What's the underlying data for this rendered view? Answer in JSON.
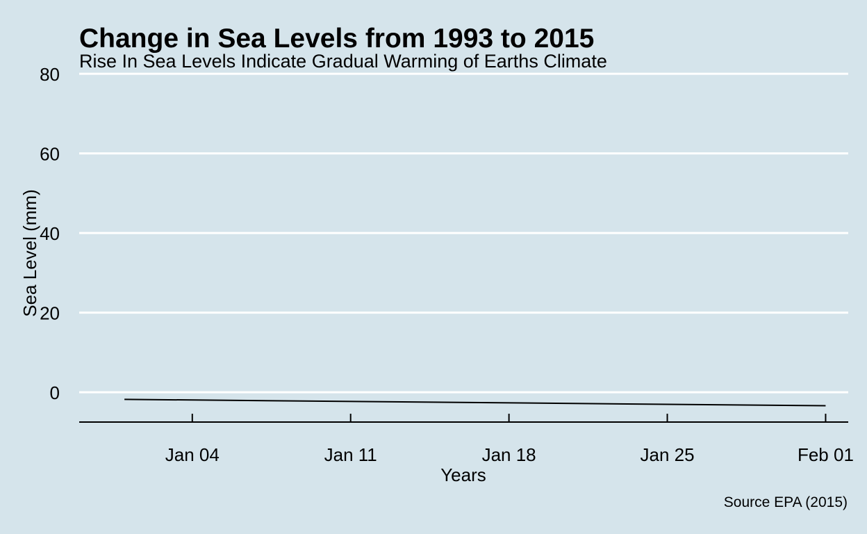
{
  "colors": {
    "background": "#d5e4eb",
    "gridline": "#ffffff",
    "line": "#000000"
  },
  "chart_data": {
    "type": "line",
    "title": "Change in Sea Levels from 1993 to 2015",
    "subtitle": "Rise In Sea Levels Indicate Gradual Warming of Earths Climate",
    "xlabel": "Years",
    "ylabel": "Sea Level (mm)",
    "caption": "Source EPA (2015)",
    "grid": true,
    "legend": "none",
    "x_ticks": [
      "Jan 04",
      "Jan 11",
      "Jan 18",
      "Jan 25",
      "Feb 01"
    ],
    "x_tick_dates": [
      "Jan 04",
      "Jan 11",
      "Jan 18",
      "Jan 25",
      "Feb 01"
    ],
    "xlim": [
      "Dec 30",
      "Feb 02"
    ],
    "y_ticks": [
      0,
      20,
      40,
      60,
      80
    ],
    "ylim": [
      -7.5,
      83
    ],
    "x": [
      "Jan 01",
      "Feb 01"
    ],
    "values": [
      -1.8,
      -3.4
    ]
  }
}
